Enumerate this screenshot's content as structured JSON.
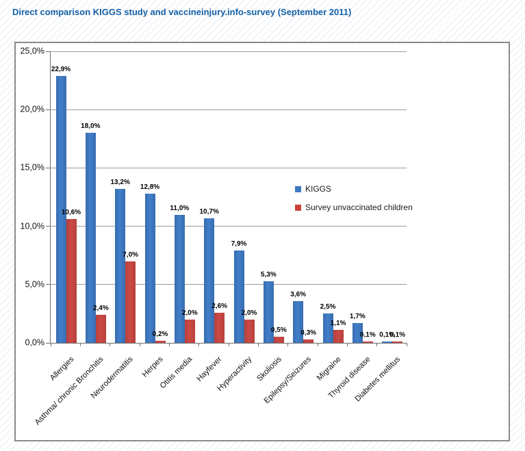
{
  "page": {
    "title": "Direct comparison KIGGS study and vaccineinjury.info-survey (September 2011)"
  },
  "chart_data": {
    "type": "bar",
    "title": "Direct comparison KIGGS study and vaccineinjury.info-survey (September 2011)",
    "categories": [
      "Allergies",
      "Asthma/ chronic Bronchitis",
      "Neurodermatitis",
      "Herpes",
      "Otitis media",
      "Hayfever",
      "Hyperactivity",
      "Skoliosis",
      "Epilepsy/Seizures",
      "Migraine",
      "Thyroid disease",
      "Diabetes mellitus"
    ],
    "series": [
      {
        "name": "KIGGS",
        "color": "#3d79c3",
        "values": [
          22.9,
          18.0,
          13.2,
          12.8,
          11.0,
          10.7,
          7.9,
          5.3,
          3.6,
          2.5,
          1.7,
          0.1
        ],
        "labels": [
          "22,9%",
          "18,0%",
          "13,2%",
          "12,8%",
          "11,0%",
          "10,7%",
          "7,9%",
          "5,3%",
          "3,6%",
          "2,5%",
          "1,7%",
          "0,1%"
        ]
      },
      {
        "name": "Survey unvaccinated children",
        "color": "#c8423e",
        "values": [
          10.6,
          2.4,
          7.0,
          0.2,
          2.0,
          2.6,
          2.0,
          0.5,
          0.3,
          1.1,
          0.1,
          0.1
        ],
        "labels": [
          "10,6%",
          "2,4%",
          "7,0%",
          "0,2%",
          "2,0%",
          "2,6%",
          "2,0%",
          "0,5%",
          "0,3%",
          "1,1%",
          "0,1%",
          "0,1%"
        ]
      }
    ],
    "ylim": [
      0,
      25
    ],
    "ytick_step": 5,
    "ytick_labels": [
      "0,0%",
      "5,0%",
      "10,0%",
      "15,0%",
      "20,0%",
      "25,0%"
    ],
    "grid": true,
    "legend_position": "inside-center-right",
    "xlabel": "",
    "ylabel": ""
  }
}
